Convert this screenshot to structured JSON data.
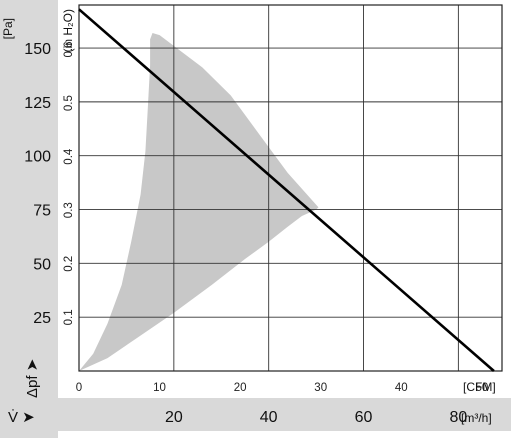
{
  "chart_data": {
    "type": "line",
    "y_left": {
      "label": "Δpf",
      "unit": "[Pa]",
      "ticks": [
        25,
        50,
        75,
        100,
        125,
        150
      ],
      "range": [
        0,
        170
      ]
    },
    "y_right": {
      "unit": "(in H₂O)",
      "ticks": [
        "0.1",
        "0.2",
        "0.3",
        "0.4",
        "0.5",
        "0.6"
      ],
      "range": [
        0,
        0.683
      ]
    },
    "x_top": {
      "unit": "[CFM]",
      "ticks": [
        0,
        10,
        20,
        30,
        40,
        50
      ]
    },
    "x_bottom": {
      "label": "V̇",
      "unit": "[m³/h]",
      "ticks": [
        "20",
        "40",
        "60",
        "80"
      ],
      "values": [
        20,
        40,
        60,
        80
      ],
      "range": [
        0,
        89.2
      ]
    },
    "grid": true,
    "series": [
      {
        "kind": "line",
        "color": "#000000",
        "points": [
          [
            0,
            168
          ],
          [
            87.5,
            0
          ]
        ]
      },
      {
        "kind": "area",
        "color": "#c8c8c8",
        "outline": [
          [
            0,
            0
          ],
          [
            6,
            6
          ],
          [
            12,
            15
          ],
          [
            20,
            27
          ],
          [
            28,
            40
          ],
          [
            35,
            52
          ],
          [
            40,
            60
          ],
          [
            44,
            67
          ],
          [
            47,
            72
          ],
          [
            49,
            74
          ],
          [
            50,
            75
          ],
          [
            50.5,
            76
          ],
          [
            44,
            92
          ],
          [
            38,
            110
          ],
          [
            32,
            128
          ],
          [
            26,
            141
          ],
          [
            20,
            151
          ],
          [
            17,
            156
          ],
          [
            15.5,
            157
          ],
          [
            15,
            154
          ],
          [
            15,
            142
          ],
          [
            14.5,
            122
          ],
          [
            14,
            102
          ],
          [
            13,
            82
          ],
          [
            11,
            60
          ],
          [
            9,
            40
          ],
          [
            6,
            22
          ],
          [
            3,
            8
          ],
          [
            0,
            0
          ]
        ]
      }
    ]
  }
}
